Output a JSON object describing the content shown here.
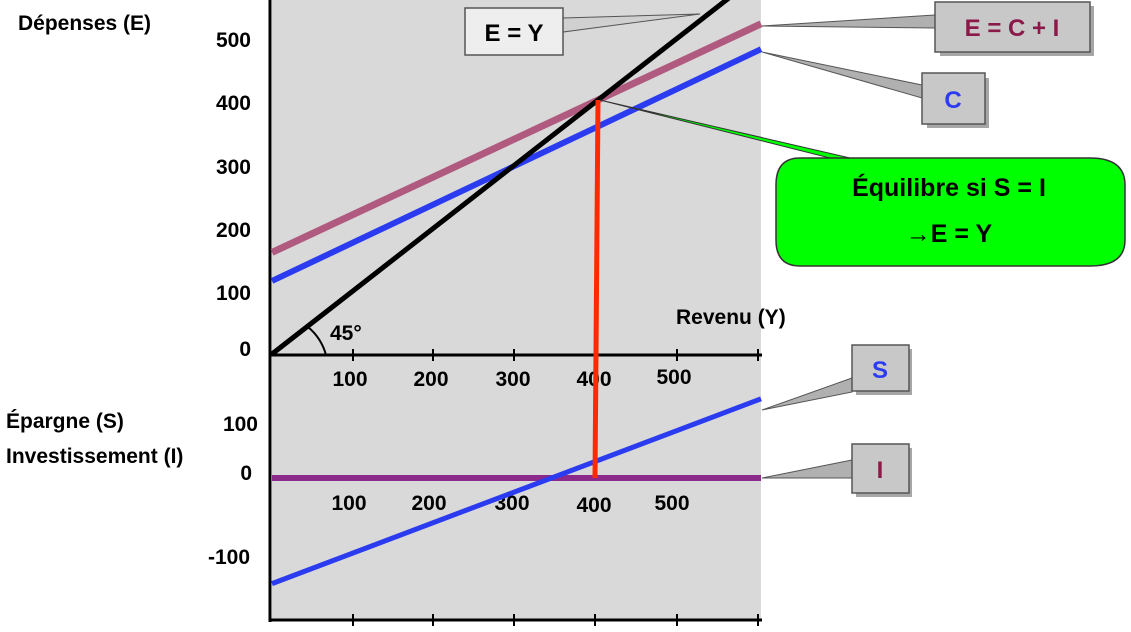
{
  "chart_data": [
    {
      "panel": "top",
      "type": "line",
      "ylabel": "Dépenses (E)",
      "xlabel": "Revenu (Y)",
      "xlim": [
        0,
        600
      ],
      "ylim": [
        0,
        550
      ],
      "x_ticks": [
        "100",
        "200",
        "300",
        "400",
        "500"
      ],
      "y_ticks": [
        "0",
        "100",
        "200",
        "300",
        "400",
        "500"
      ],
      "angle_label": "45°",
      "series": [
        {
          "name": "E = Y",
          "color": "#000000",
          "x": [
            0,
            563
          ],
          "y": [
            0,
            563
          ]
        },
        {
          "name": "E = C + I",
          "color": "#b05a80",
          "x": [
            0,
            600
          ],
          "y": [
            160,
            520
          ]
        },
        {
          "name": "C",
          "color": "#2b3cf0",
          "x": [
            0,
            600
          ],
          "y": [
            115,
            480
          ]
        }
      ],
      "equilibrium": {
        "x": 400,
        "y": 400
      }
    },
    {
      "panel": "bottom",
      "type": "line",
      "ylabel": [
        "Épargne (S)",
        "Investissement (I)"
      ],
      "xlim": [
        0,
        600
      ],
      "ylim": [
        -180,
        160
      ],
      "x_ticks": [
        "100",
        "200",
        "300",
        "400",
        "500"
      ],
      "y_ticks": [
        "-100",
        "0",
        "100"
      ],
      "series": [
        {
          "name": "S",
          "color": "#2b3cf0",
          "x": [
            0,
            600
          ],
          "y": [
            -160,
            120
          ]
        },
        {
          "name": "I",
          "color": "#8b2a8b",
          "x": [
            0,
            600
          ],
          "y": [
            0,
            0
          ]
        }
      ]
    }
  ],
  "callout": {
    "line1": "Équilibre si S = I",
    "line2": "→E = Y",
    "color": "#00ff00"
  },
  "colors": {
    "plot_bg": "#d9d9d9",
    "equilibrium_line": "#ff2a00",
    "box_bg": "#c8c8c8"
  }
}
